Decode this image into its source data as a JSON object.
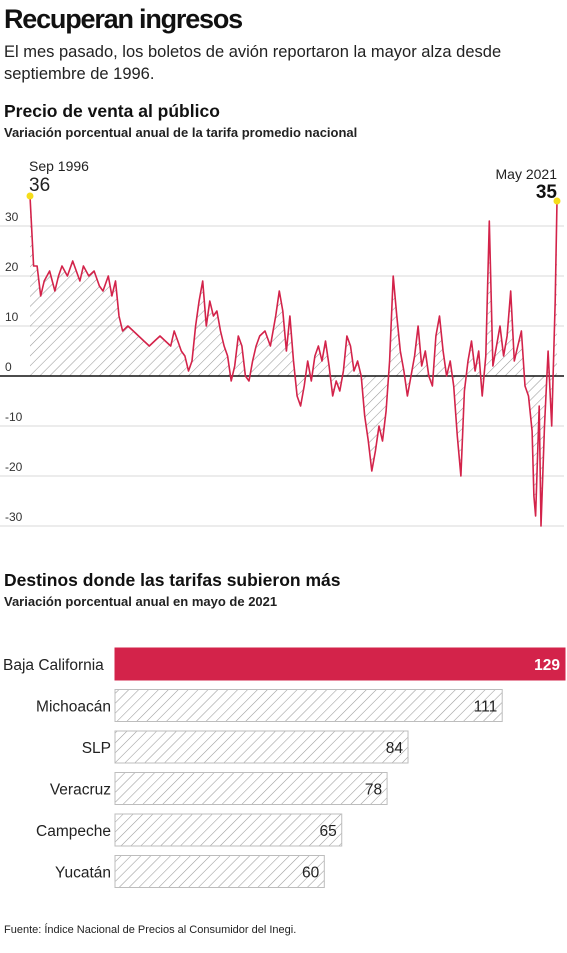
{
  "headline": "Recuperan ingresos",
  "subheadline": "El mes pasado, los boletos de avión reportaron la mayor alza desde septiembre de 1996.",
  "source": "Fuente: Índice Nacional de Precios al Consumidor del Inegi.",
  "colors": {
    "accent": "#d3234a",
    "hatch": "#9a9a9a",
    "bar_outline": "#bdbdbd",
    "marker": "#f5dd1a",
    "zero_line": "#111111"
  },
  "chart_data": [
    {
      "type": "area",
      "title": "Precio de venta al público",
      "subtitle": "Variación porcentual anual de la tarifa promedio nacional",
      "x_range": [
        "1996-09",
        "2021-05"
      ],
      "ylim": [
        -31,
        37
      ],
      "yticks": [
        "30",
        "20",
        "10",
        "0",
        "-10",
        "-20",
        "-30"
      ],
      "ytick_values": [
        30,
        20,
        10,
        0,
        -10,
        -20,
        -30
      ],
      "grid": true,
      "annotations": [
        {
          "date": "Sep 1996",
          "value": "36"
        },
        {
          "date": "May 2021",
          "value": "35"
        }
      ],
      "series": [
        {
          "points": [
            [
              "1996-09",
              36
            ],
            [
              "1996-11",
              22
            ],
            [
              "1997-01",
              22
            ],
            [
              "1997-03",
              16
            ],
            [
              "1997-05",
              19
            ],
            [
              "1997-08",
              21
            ],
            [
              "1997-11",
              17
            ],
            [
              "1998-01",
              20
            ],
            [
              "1998-03",
              22
            ],
            [
              "1998-06",
              20
            ],
            [
              "1998-09",
              23
            ],
            [
              "1998-11",
              21
            ],
            [
              "1999-01",
              19
            ],
            [
              "1999-03",
              22
            ],
            [
              "1999-06",
              20
            ],
            [
              "1999-09",
              21
            ],
            [
              "1999-12",
              18
            ],
            [
              "2000-02",
              17
            ],
            [
              "2000-05",
              20
            ],
            [
              "2000-07",
              16
            ],
            [
              "2000-09",
              19
            ],
            [
              "2000-11",
              12
            ],
            [
              "2001-01",
              9
            ],
            [
              "2001-04",
              10
            ],
            [
              "2001-07",
              9
            ],
            [
              "2001-10",
              8
            ],
            [
              "2002-01",
              7
            ],
            [
              "2002-04",
              6
            ],
            [
              "2002-07",
              7
            ],
            [
              "2002-10",
              8
            ],
            [
              "2003-01",
              7
            ],
            [
              "2003-04",
              6
            ],
            [
              "2003-06",
              9
            ],
            [
              "2003-08",
              7
            ],
            [
              "2003-10",
              5
            ],
            [
              "2003-12",
              4
            ],
            [
              "2004-02",
              1
            ],
            [
              "2004-04",
              3
            ],
            [
              "2004-06",
              10
            ],
            [
              "2004-08",
              15
            ],
            [
              "2004-10",
              19
            ],
            [
              "2004-12",
              10
            ],
            [
              "2005-02",
              15
            ],
            [
              "2005-04",
              12
            ],
            [
              "2005-06",
              13
            ],
            [
              "2005-08",
              9
            ],
            [
              "2005-10",
              6
            ],
            [
              "2005-12",
              4
            ],
            [
              "2006-02",
              -1
            ],
            [
              "2006-04",
              2
            ],
            [
              "2006-06",
              8
            ],
            [
              "2006-08",
              6
            ],
            [
              "2006-10",
              0
            ],
            [
              "2006-12",
              -1
            ],
            [
              "2007-02",
              3
            ],
            [
              "2007-04",
              6
            ],
            [
              "2007-06",
              8
            ],
            [
              "2007-09",
              9
            ],
            [
              "2007-12",
              6
            ],
            [
              "2008-03",
              12
            ],
            [
              "2008-05",
              17
            ],
            [
              "2008-07",
              13
            ],
            [
              "2008-09",
              5
            ],
            [
              "2008-11",
              12
            ],
            [
              "2009-01",
              3
            ],
            [
              "2009-03",
              -4
            ],
            [
              "2009-05",
              -6
            ],
            [
              "2009-07",
              -2
            ],
            [
              "2009-09",
              3
            ],
            [
              "2009-11",
              -1
            ],
            [
              "2010-01",
              4
            ],
            [
              "2010-03",
              6
            ],
            [
              "2010-05",
              3
            ],
            [
              "2010-07",
              7
            ],
            [
              "2010-09",
              2
            ],
            [
              "2010-11",
              -4
            ],
            [
              "2011-01",
              -1
            ],
            [
              "2011-03",
              -3
            ],
            [
              "2011-05",
              1
            ],
            [
              "2011-07",
              8
            ],
            [
              "2011-09",
              6
            ],
            [
              "2011-11",
              1
            ],
            [
              "2012-01",
              3
            ],
            [
              "2012-03",
              0
            ],
            [
              "2012-05",
              -8
            ],
            [
              "2012-07",
              -13
            ],
            [
              "2012-09",
              -19
            ],
            [
              "2012-11",
              -15
            ],
            [
              "2013-01",
              -10
            ],
            [
              "2013-03",
              -13
            ],
            [
              "2013-05",
              -7
            ],
            [
              "2013-07",
              3
            ],
            [
              "2013-09",
              20
            ],
            [
              "2013-11",
              12
            ],
            [
              "2014-01",
              5
            ],
            [
              "2014-03",
              1
            ],
            [
              "2014-05",
              -4
            ],
            [
              "2014-07",
              0
            ],
            [
              "2014-09",
              4
            ],
            [
              "2014-11",
              10
            ],
            [
              "2015-01",
              2
            ],
            [
              "2015-03",
              5
            ],
            [
              "2015-05",
              0
            ],
            [
              "2015-07",
              -2
            ],
            [
              "2015-09",
              8
            ],
            [
              "2015-11",
              12
            ],
            [
              "2016-01",
              5
            ],
            [
              "2016-03",
              0
            ],
            [
              "2016-05",
              3
            ],
            [
              "2016-07",
              -2
            ],
            [
              "2016-09",
              -12
            ],
            [
              "2016-11",
              -20
            ],
            [
              "2017-01",
              -3
            ],
            [
              "2017-03",
              3
            ],
            [
              "2017-05",
              7
            ],
            [
              "2017-07",
              1
            ],
            [
              "2017-09",
              5
            ],
            [
              "2017-11",
              -4
            ],
            [
              "2018-01",
              4
            ],
            [
              "2018-03",
              31
            ],
            [
              "2018-05",
              2
            ],
            [
              "2018-07",
              6
            ],
            [
              "2018-09",
              10
            ],
            [
              "2018-11",
              4
            ],
            [
              "2019-01",
              8
            ],
            [
              "2019-03",
              17
            ],
            [
              "2019-05",
              3
            ],
            [
              "2019-07",
              6
            ],
            [
              "2019-09",
              9
            ],
            [
              "2019-11",
              -2
            ],
            [
              "2020-01",
              -4
            ],
            [
              "2020-03",
              -11
            ],
            [
              "2020-04",
              -24
            ],
            [
              "2020-05",
              -28
            ],
            [
              "2020-07",
              -6
            ],
            [
              "2020-08",
              -30
            ],
            [
              "2020-10",
              -10
            ],
            [
              "2020-12",
              5
            ],
            [
              "2021-02",
              -10
            ],
            [
              "2021-04",
              15
            ],
            [
              "2021-05",
              35
            ]
          ]
        }
      ]
    },
    {
      "type": "bar",
      "orientation": "horizontal",
      "title": "Destinos donde las tarifas subieron más",
      "subtitle": "Variación porcentual anual en mayo de 2021",
      "categories": [
        "Baja California",
        "Michoacán",
        "SLP",
        "Veracruz",
        "Campeche",
        "Yucatán"
      ],
      "values": [
        129,
        111,
        84,
        78,
        65,
        60
      ],
      "value_labels": [
        "129",
        "111",
        "84",
        "78",
        "65",
        "60"
      ],
      "highlight": "Baja California"
    }
  ]
}
